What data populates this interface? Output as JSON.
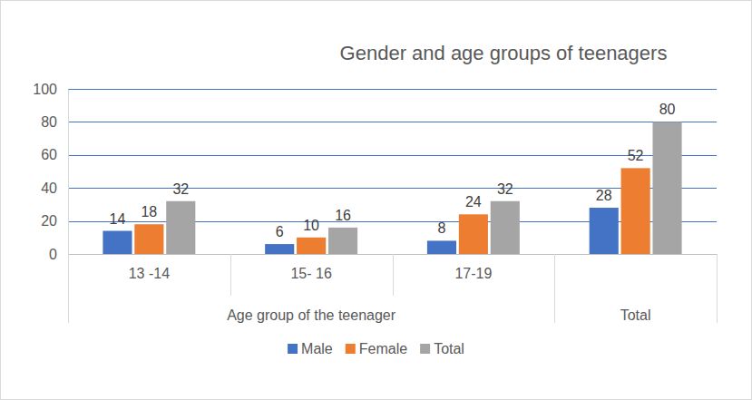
{
  "chart_data": {
    "type": "bar",
    "title": "Gender and age groups of teenagers",
    "categories": [
      "13 -14",
      "15- 16",
      "17-19",
      null
    ],
    "category_groups": [
      {
        "label": "Age group of the teenager",
        "size": 3
      },
      {
        "label": "Total",
        "size": 1
      }
    ],
    "series": [
      {
        "name": "Male",
        "color": "#4472c4",
        "values": [
          14,
          6,
          8,
          28
        ]
      },
      {
        "name": "Female",
        "color": "#ed7d31",
        "values": [
          18,
          10,
          24,
          52
        ]
      },
      {
        "name": "Total",
        "color": "#a5a5a5",
        "values": [
          32,
          16,
          32,
          80
        ]
      }
    ],
    "ylim": [
      0,
      100
    ],
    "yticks": [
      0,
      20,
      40,
      60,
      80,
      100
    ],
    "grid": true,
    "data_labels": true,
    "legend": "bottom"
  }
}
